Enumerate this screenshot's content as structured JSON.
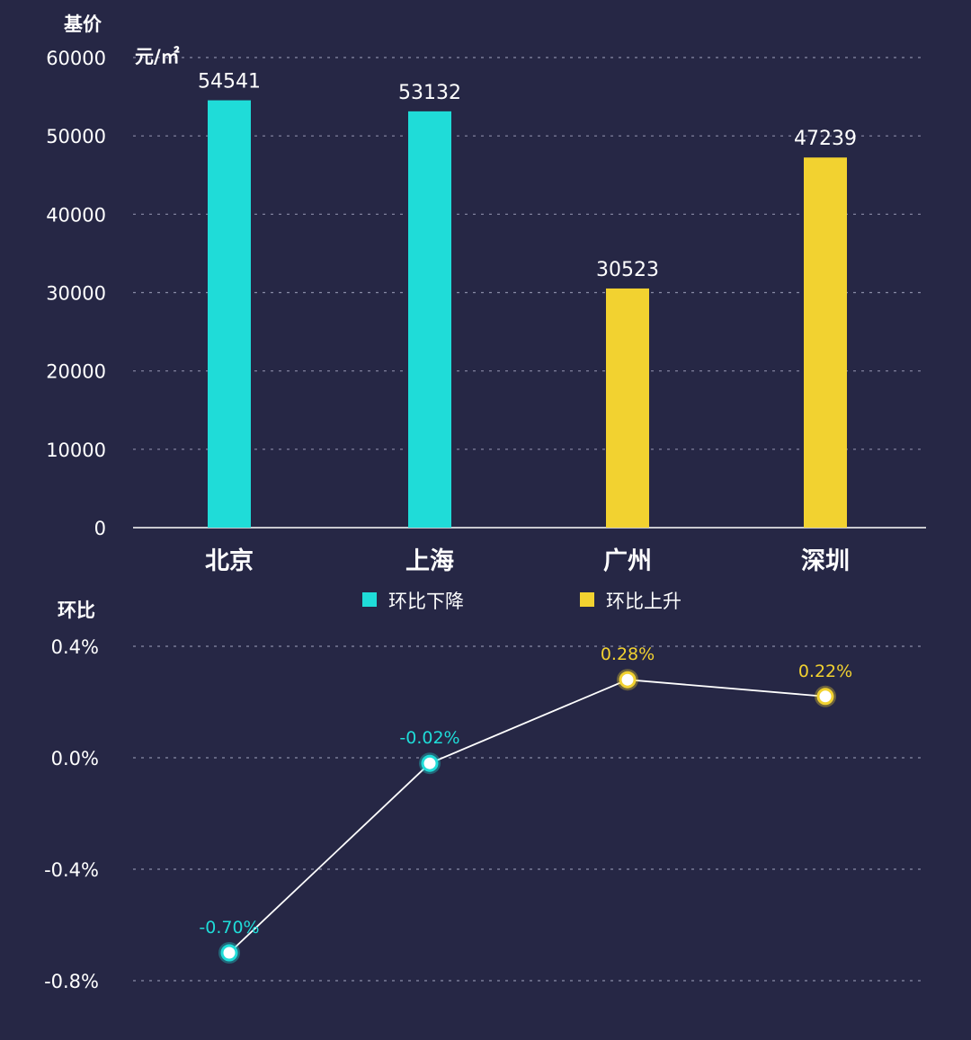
{
  "colors": {
    "background": "#262745",
    "decrease": "#1fdcd8",
    "increase": "#f2d230",
    "line": "#ffffff",
    "text": "#ffffff"
  },
  "chart_data": [
    {
      "type": "bar",
      "title": "",
      "ylabel": "基价",
      "unit": "元/㎡",
      "ylim": [
        0,
        60000
      ],
      "yticks": [
        "60000",
        "50000",
        "40000",
        "30000",
        "20000",
        "10000",
        "0"
      ],
      "grid": true,
      "categories": [
        "北京",
        "上海",
        "广州",
        "深圳"
      ],
      "values": [
        54541,
        53132,
        30523,
        47239
      ],
      "bar_status": [
        "decrease",
        "decrease",
        "increase",
        "increase"
      ],
      "legend": {
        "placement": "bottom",
        "items": [
          {
            "key": "decrease",
            "label": "环比下降"
          },
          {
            "key": "increase",
            "label": "环比上升"
          }
        ]
      }
    },
    {
      "type": "line",
      "title": "",
      "ylabel": "环比",
      "ylim": [
        -0.8,
        0.4
      ],
      "yticks": [
        "0.4%",
        "0.0%",
        "-0.4%",
        "-0.8%"
      ],
      "grid": true,
      "categories": [
        "北京",
        "上海",
        "广州",
        "深圳"
      ],
      "values": [
        -0.7,
        -0.02,
        0.28,
        0.22
      ],
      "labels": [
        "-0.70%",
        "-0.02%",
        "0.28%",
        "0.22%"
      ],
      "point_status": [
        "decrease",
        "decrease",
        "increase",
        "increase"
      ]
    }
  ]
}
